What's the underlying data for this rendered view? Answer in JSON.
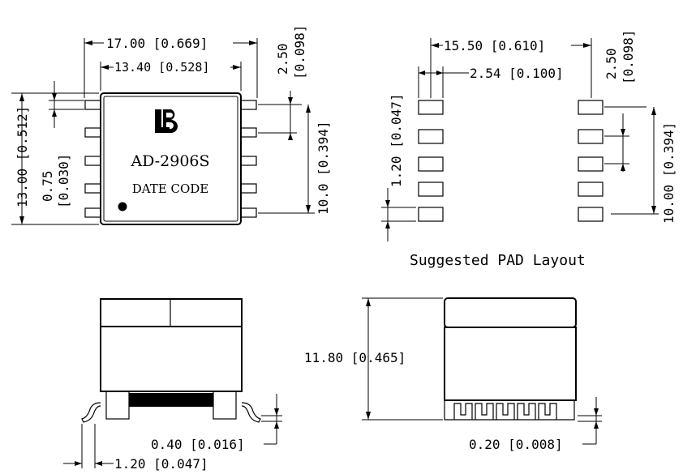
{
  "top_view": {
    "dim_overall_width": "17.00 [0.669]",
    "dim_body_width": "13.40 [0.528]",
    "dim_pin_pitch_mm": "2.50",
    "dim_pin_pitch_in": "[0.098]",
    "dim_overall_height": "13.00 [0.512]",
    "dim_pin_width_mm": "0.75",
    "dim_pin_width_in": "[0.030]",
    "dim_pin_span": "10.0 [0.394]",
    "logo_text": "LB",
    "part_number": "AD-2906S",
    "date_code": "DATE CODE"
  },
  "pad_layout": {
    "dim_pad_span": "15.50 [0.610]",
    "dim_pad_length": "2.54 [0.100]",
    "dim_pad_pitch_mm": "2.50",
    "dim_pad_pitch_in": "[0.098]",
    "dim_pad_width": "1.20 [0.047]",
    "dim_pad_row_span": "10.00 [0.394]",
    "caption": "Suggested PAD Layout"
  },
  "side_view": {
    "dim_standoff": "0.40 [0.016]",
    "dim_lead_length": "1.20 [0.047]"
  },
  "front_view": {
    "dim_height": "11.80 [0.465]",
    "dim_lead_thickness": "0.20 [0.008]"
  }
}
